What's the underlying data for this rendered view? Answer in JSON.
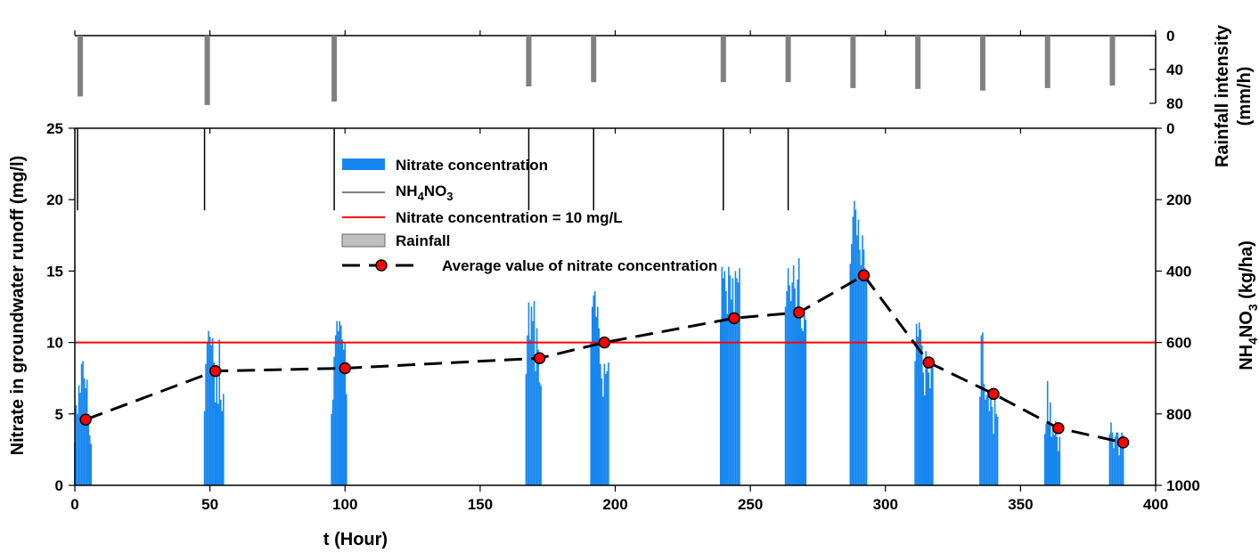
{
  "chart_data": {
    "type": "bar",
    "x_axis": {
      "label": "t (Hour)",
      "range": [
        0,
        400
      ],
      "ticks": [
        0,
        50,
        100,
        150,
        200,
        250,
        300,
        350,
        400
      ]
    },
    "left_axis": {
      "label": "Nitrate in groundwater runoff (mg/l)",
      "range": [
        0,
        25
      ],
      "ticks": [
        0,
        5,
        10,
        15,
        20,
        25
      ]
    },
    "right_axis": {
      "label_main": "NH",
      "label_sub1": "4",
      "label_mid": "NO",
      "label_sub2": "3",
      "label_unit": " (kg/ha)",
      "range": [
        0,
        1000
      ],
      "inverted": true,
      "ticks": [
        0,
        200,
        400,
        600,
        800,
        1000
      ]
    },
    "rain_axis": {
      "label_line1": "Rainfall intensity",
      "label_line2": "(mm/h)",
      "range": [
        0,
        80
      ],
      "inverted": true,
      "ticks": [
        0,
        40,
        80
      ]
    },
    "legend": {
      "nitrate": "Nitrate concentration",
      "nh4no3_main": "NH",
      "nh4no3_sub1": "4",
      "nh4no3_mid": "NO",
      "nh4no3_sub2": "3",
      "threshold": "Nitrate concentration =  10 mg/L",
      "rainfall": "Rainfall",
      "average": "Average value of nitrate concentration"
    },
    "threshold": 10,
    "rainfall": [
      {
        "t": 2,
        "intensity": 72
      },
      {
        "t": 49,
        "intensity": 82
      },
      {
        "t": 96,
        "intensity": 78
      },
      {
        "t": 168,
        "intensity": 60
      },
      {
        "t": 192,
        "intensity": 55
      },
      {
        "t": 240,
        "intensity": 55
      },
      {
        "t": 264,
        "intensity": 55
      },
      {
        "t": 288,
        "intensity": 62
      },
      {
        "t": 312,
        "intensity": 63
      },
      {
        "t": 336,
        "intensity": 65
      },
      {
        "t": 360,
        "intensity": 62
      },
      {
        "t": 384,
        "intensity": 59
      }
    ],
    "nh4no3": [
      {
        "t": 1,
        "value": 230
      },
      {
        "t": 48,
        "value": 230
      },
      {
        "t": 96,
        "value": 230
      },
      {
        "t": 168,
        "value": 230
      },
      {
        "t": 192,
        "value": 230
      },
      {
        "t": 240,
        "value": 230
      },
      {
        "t": 264,
        "value": 230
      }
    ],
    "average": [
      {
        "t": 4,
        "value": 4.6
      },
      {
        "t": 52,
        "value": 8.0
      },
      {
        "t": 100,
        "value": 8.2
      },
      {
        "t": 172,
        "value": 8.9
      },
      {
        "t": 196,
        "value": 10.0
      },
      {
        "t": 244,
        "value": 11.7
      },
      {
        "t": 268,
        "value": 12.1
      },
      {
        "t": 292,
        "value": 14.7
      },
      {
        "t": 316,
        "value": 8.6
      },
      {
        "t": 340,
        "value": 6.4
      },
      {
        "t": 364,
        "value": 4.0
      },
      {
        "t": 388,
        "value": 3.0
      }
    ],
    "nitrate_events": [
      {
        "start": 0,
        "values": [
          3,
          5.6,
          5,
          7,
          6.5,
          8.5,
          8.7,
          7.5,
          6.8,
          7.4,
          5,
          3.5,
          2.9
        ]
      },
      {
        "start": 48,
        "values": [
          5.2,
          8.5,
          10,
          10.8,
          10.4,
          9.8,
          10.3,
          8.6,
          5.8,
          8,
          5.7,
          10.2,
          6,
          5.2,
          6.4
        ]
      },
      {
        "start": 95,
        "values": [
          5,
          6,
          9,
          10.5,
          11.5,
          10.8,
          11.5,
          11.2,
          10.2,
          9.5,
          10,
          6.4
        ]
      },
      {
        "start": 167,
        "values": [
          7.8,
          10.5,
          12.8,
          10.2,
          12.5,
          11.5,
          12.9,
          8,
          11,
          9.5,
          7.2,
          7
        ]
      },
      {
        "start": 191,
        "values": [
          10,
          12.5,
          13.3,
          13.6,
          11.8,
          12.5,
          11,
          8.5,
          7.5,
          6.2,
          8.5,
          7.8,
          8,
          8.6
        ]
      },
      {
        "start": 239,
        "values": [
          11.5,
          15.3,
          14.5,
          15,
          13.6,
          12,
          15.3,
          14.7,
          13,
          14.5,
          12,
          15,
          14.5,
          14.2,
          15.2
        ]
      },
      {
        "start": 263,
        "values": [
          12.5,
          13.6,
          15.2,
          14,
          12.9,
          14.2,
          15.4,
          13.8,
          12.2,
          14.4,
          15.9,
          12,
          11,
          10.8,
          12,
          11.6
        ]
      },
      {
        "start": 287,
        "values": [
          15.5,
          16.9,
          18.8,
          19.9,
          19.3,
          17.5,
          18.6,
          16.5,
          15.4,
          17.5,
          16.5,
          15.2,
          14.6
        ]
      },
      {
        "start": 311,
        "values": [
          8.7,
          11.3,
          10.4,
          11.4,
          10.9,
          9.8,
          7.9,
          6.3,
          9.4,
          8.5,
          7.9,
          6.8,
          8.4,
          8.8
        ]
      },
      {
        "start": 335,
        "values": [
          6.2,
          10.5,
          10.7,
          7.1,
          6,
          6.3,
          6.7,
          5.2,
          6.1,
          5.5,
          3.6,
          6.1,
          5,
          4.8
        ]
      },
      {
        "start": 359,
        "values": [
          3.6,
          4.3,
          7.3,
          4.5,
          5.8,
          3.4,
          4.2,
          3.5,
          4.5,
          3.4,
          2.4,
          3.4
        ]
      },
      {
        "start": 383,
        "values": [
          3.6,
          4.4,
          3.7,
          2.6,
          3.4,
          3.7,
          3.7,
          2.1,
          3.4,
          3.7,
          3.5
        ]
      }
    ]
  }
}
